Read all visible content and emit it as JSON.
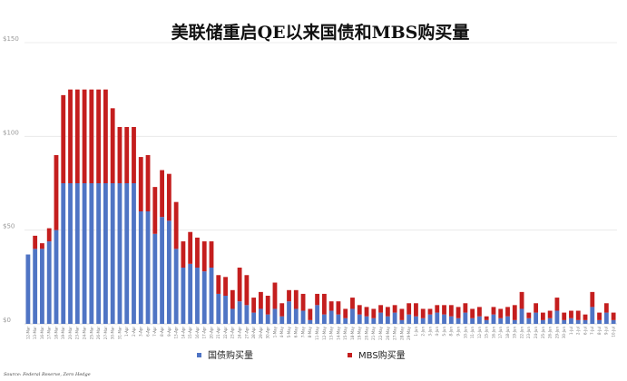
{
  "chart_data": {
    "type": "bar",
    "stacked": true,
    "title": "美联储重启QE以来国债和MBS购买量",
    "source": "Source: Federal Reserve, Zero Hedge",
    "ylim": [
      0,
      150
    ],
    "yticks": [
      "$0",
      "$50",
      "$100",
      "$150"
    ],
    "ytick_values": [
      0,
      50,
      100,
      150
    ],
    "grid": true,
    "legend_position": "bottom",
    "categories": [
      "12-Mar",
      "13-Mar",
      "16-Mar",
      "17-Mar",
      "18-Mar",
      "19-Mar",
      "20-Mar",
      "23-Mar",
      "24-Mar",
      "25-Mar",
      "26-Mar",
      "27-Mar",
      "30-Mar",
      "31-Mar",
      "1-Apr",
      "2-Apr",
      "3-Apr",
      "6-Apr",
      "7-Apr",
      "8-Apr",
      "9-Apr",
      "13-Apr",
      "14-Apr",
      "15-Apr",
      "16-Apr",
      "17-Apr",
      "20-Apr",
      "21-Apr",
      "22-Apr",
      "23-Apr",
      "24-Apr",
      "27-Apr",
      "28-Apr",
      "29-Apr",
      "30-Apr",
      "1-May",
      "4-May",
      "5-May",
      "6-May",
      "7-May",
      "8-May",
      "11-May",
      "12-May",
      "13-May",
      "14-May",
      "15-May",
      "18-May",
      "19-May",
      "20-May",
      "21-May",
      "22-May",
      "26-May",
      "27-May",
      "28-May",
      "29-May",
      "1-Jun",
      "2-Jun",
      "3-Jun",
      "4-Jun",
      "5-Jun",
      "8-Jun",
      "9-Jun",
      "10-Jun",
      "11-Jun",
      "12-Jun",
      "15-Jun",
      "16-Jun",
      "17-Jun",
      "18-Jun",
      "19-Jun",
      "22-Jun",
      "23-Jun",
      "24-Jun",
      "25-Jun",
      "26-Jun",
      "29-Jun",
      "30-Jun",
      "1-Jul",
      "2-Jul",
      "6-Jul",
      "7-Jul",
      "8-Jul",
      "9-Jul",
      "10-Jul"
    ],
    "series": [
      {
        "name": "国债购买量",
        "color": "#4f74c4",
        "values": [
          37,
          40,
          40,
          44,
          50,
          75,
          75,
          75,
          75,
          75,
          75,
          75,
          75,
          75,
          75,
          75,
          60,
          60,
          48,
          57,
          55,
          40,
          30,
          32,
          30,
          28,
          30,
          16,
          15,
          8,
          12,
          10,
          6,
          8,
          5,
          8,
          4,
          12,
          8,
          7,
          2,
          10,
          5,
          7,
          5,
          3,
          8,
          5,
          4,
          3,
          6,
          4,
          6,
          2,
          5,
          4,
          3,
          5,
          6,
          5,
          4,
          3,
          6,
          3,
          4,
          2,
          5,
          3,
          4,
          2,
          8,
          3,
          6,
          2,
          3,
          7,
          2,
          3,
          2,
          2,
          9,
          2,
          6,
          2
        ]
      },
      {
        "name": "MBS购买量",
        "color": "#c41e1e",
        "values": [
          0,
          7,
          3,
          7,
          40,
          47,
          50,
          50,
          50,
          50,
          50,
          50,
          40,
          30,
          30,
          30,
          29,
          30,
          25,
          25,
          25,
          25,
          14,
          17,
          16,
          16,
          14,
          10,
          10,
          10,
          18,
          16,
          8,
          9,
          10,
          14,
          7,
          6,
          10,
          9,
          6,
          6,
          11,
          5,
          7,
          5,
          6,
          5,
          5,
          5,
          4,
          5,
          4,
          6,
          6,
          7,
          5,
          3,
          4,
          5,
          6,
          6,
          5,
          5,
          5,
          2,
          4,
          5,
          5,
          8,
          9,
          3,
          5,
          4,
          4,
          7,
          4,
          4,
          5,
          3,
          8,
          4,
          5,
          4
        ]
      }
    ]
  }
}
